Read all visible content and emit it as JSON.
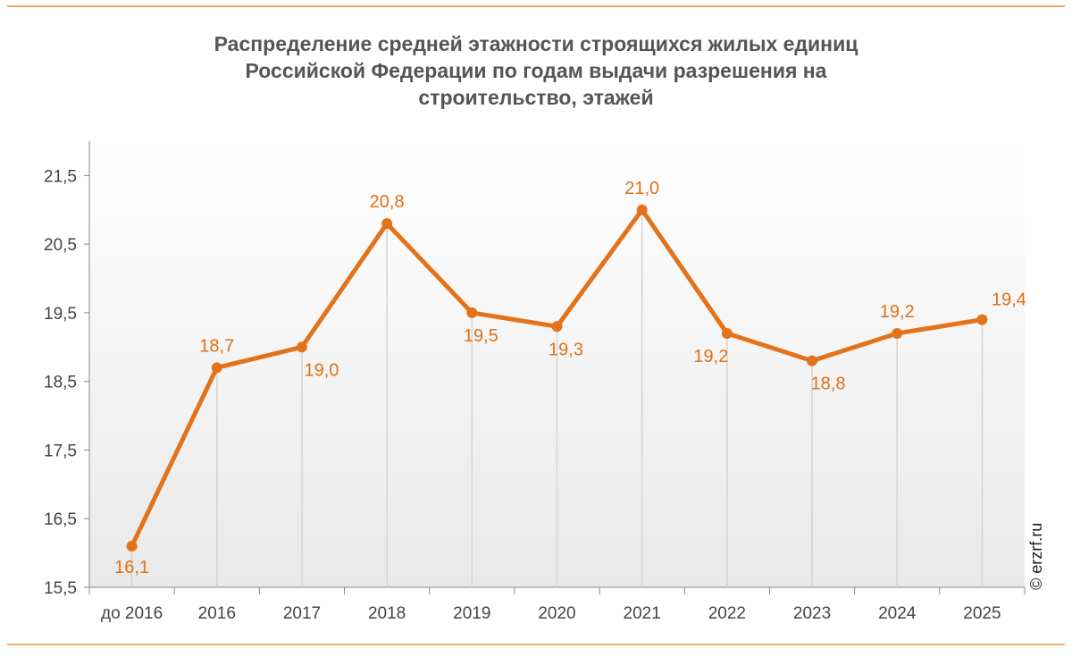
{
  "chart_data": {
    "type": "line",
    "title": [
      "Распределение средней этажности строящихся жилых единиц",
      "Российской Федерации по годам выдачи разрешения на",
      "строительство, этажей"
    ],
    "categories": [
      "до 2016",
      "2016",
      "2017",
      "2018",
      "2019",
      "2020",
      "2021",
      "2022",
      "2023",
      "2024",
      "2025"
    ],
    "values": [
      16.1,
      18.7,
      19.0,
      20.8,
      19.5,
      19.3,
      21.0,
      19.2,
      18.8,
      19.2,
      19.4
    ],
    "data_labels": [
      "16,1",
      "18,7",
      "19,0",
      "20,8",
      "19,5",
      "19,3",
      "21,0",
      "19,2",
      "18,8",
      "19,2",
      "19,4"
    ],
    "yticks": [
      15.5,
      16.5,
      17.5,
      18.5,
      19.5,
      20.5,
      21.5
    ],
    "ytick_labels": [
      "15,5",
      "16,5",
      "17,5",
      "18,5",
      "19,5",
      "20,5",
      "21,5"
    ],
    "ylim": [
      15.5,
      22
    ],
    "xlabel": "",
    "ylabel": "",
    "grid": false,
    "legend": "none",
    "line_color": "#e3731b",
    "label_color": "#e07016"
  },
  "watermark": "© erzrf.ru"
}
